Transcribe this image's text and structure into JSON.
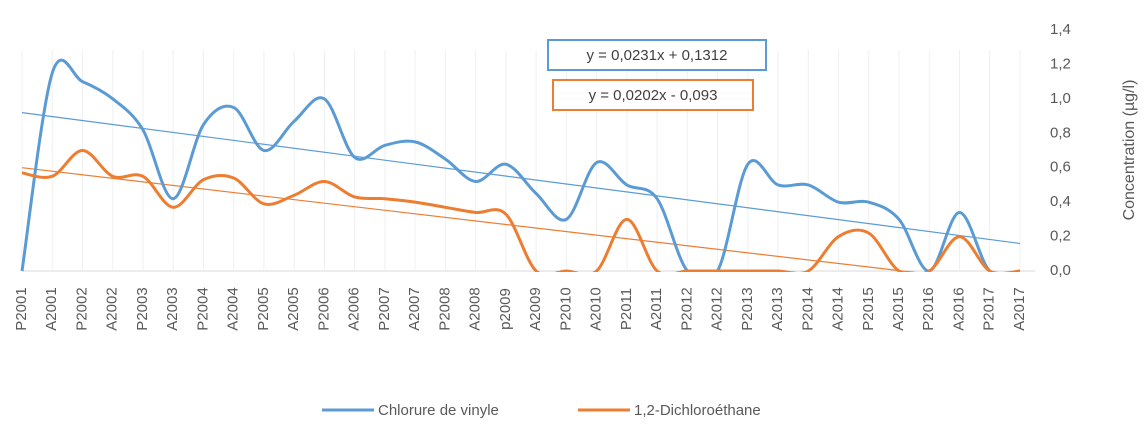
{
  "chart_data": {
    "type": "line",
    "categories": [
      "P2001",
      "A2001",
      "P2002",
      "A2002",
      "P2003",
      "A2003",
      "P2004",
      "A2004",
      "P2005",
      "A2005",
      "P2006",
      "A2006",
      "P2007",
      "A2007",
      "P2008",
      "A2008",
      "p2009",
      "A2009",
      "P2010",
      "A2010",
      "P2011",
      "A2011",
      "P2012",
      "A2012",
      "P2013",
      "A2013",
      "P2014",
      "A2014",
      "P2015",
      "A2015",
      "P2016",
      "A2016",
      "P2017",
      "A2017"
    ],
    "series": [
      {
        "name": "Chlorure de vinyle",
        "color": "#5b9bd5",
        "values": [
          0,
          1.15,
          1.1,
          1.0,
          0.82,
          0.42,
          0.85,
          0.95,
          0.7,
          0.87,
          1.0,
          0.66,
          0.73,
          0.75,
          0.65,
          0.52,
          0.62,
          0.45,
          0.3,
          0.63,
          0.5,
          0.42,
          0,
          0,
          0.62,
          0.5,
          0.5,
          0.4,
          0.4,
          0.3,
          0,
          0.34,
          0,
          0
        ]
      },
      {
        "name": "1,2-Dichloroéthane",
        "color": "#ed7d31",
        "values": [
          0.57,
          0.55,
          0.7,
          0.55,
          0.55,
          0.37,
          0.53,
          0.54,
          0.39,
          0.44,
          0.52,
          0.43,
          0.42,
          0.4,
          0.37,
          0.34,
          0.33,
          0,
          0,
          0,
          0.3,
          0,
          0,
          0,
          0,
          0,
          0,
          0.2,
          0.22,
          0,
          0,
          0.2,
          0,
          0
        ]
      }
    ],
    "trendlines": [
      {
        "equation": "y = 0,0231x + 0,1312",
        "color": "#5b9bd5",
        "start": 0.92,
        "end": 0.16
      },
      {
        "equation": "y = 0,0202x - 0,093",
        "color": "#ed7d31",
        "start": 0.6,
        "end": -0.08
      }
    ],
    "y_label": "Concentration (µg/l)",
    "ylim": [
      0,
      1.4
    ],
    "yticks": [
      {
        "value": 0,
        "label": "0,0"
      },
      {
        "value": 0.2,
        "label": "0,2"
      },
      {
        "value": 0.4,
        "label": "0,4"
      },
      {
        "value": 0.6,
        "label": "0,6"
      },
      {
        "value": 0.8,
        "label": "0,8"
      },
      {
        "value": 1.0,
        "label": "1,0"
      },
      {
        "value": 1.2,
        "label": "1,2"
      },
      {
        "value": 1.4,
        "label": "1,4"
      }
    ],
    "y_axis_side": "right",
    "smooth": true,
    "legend": "bottom"
  }
}
